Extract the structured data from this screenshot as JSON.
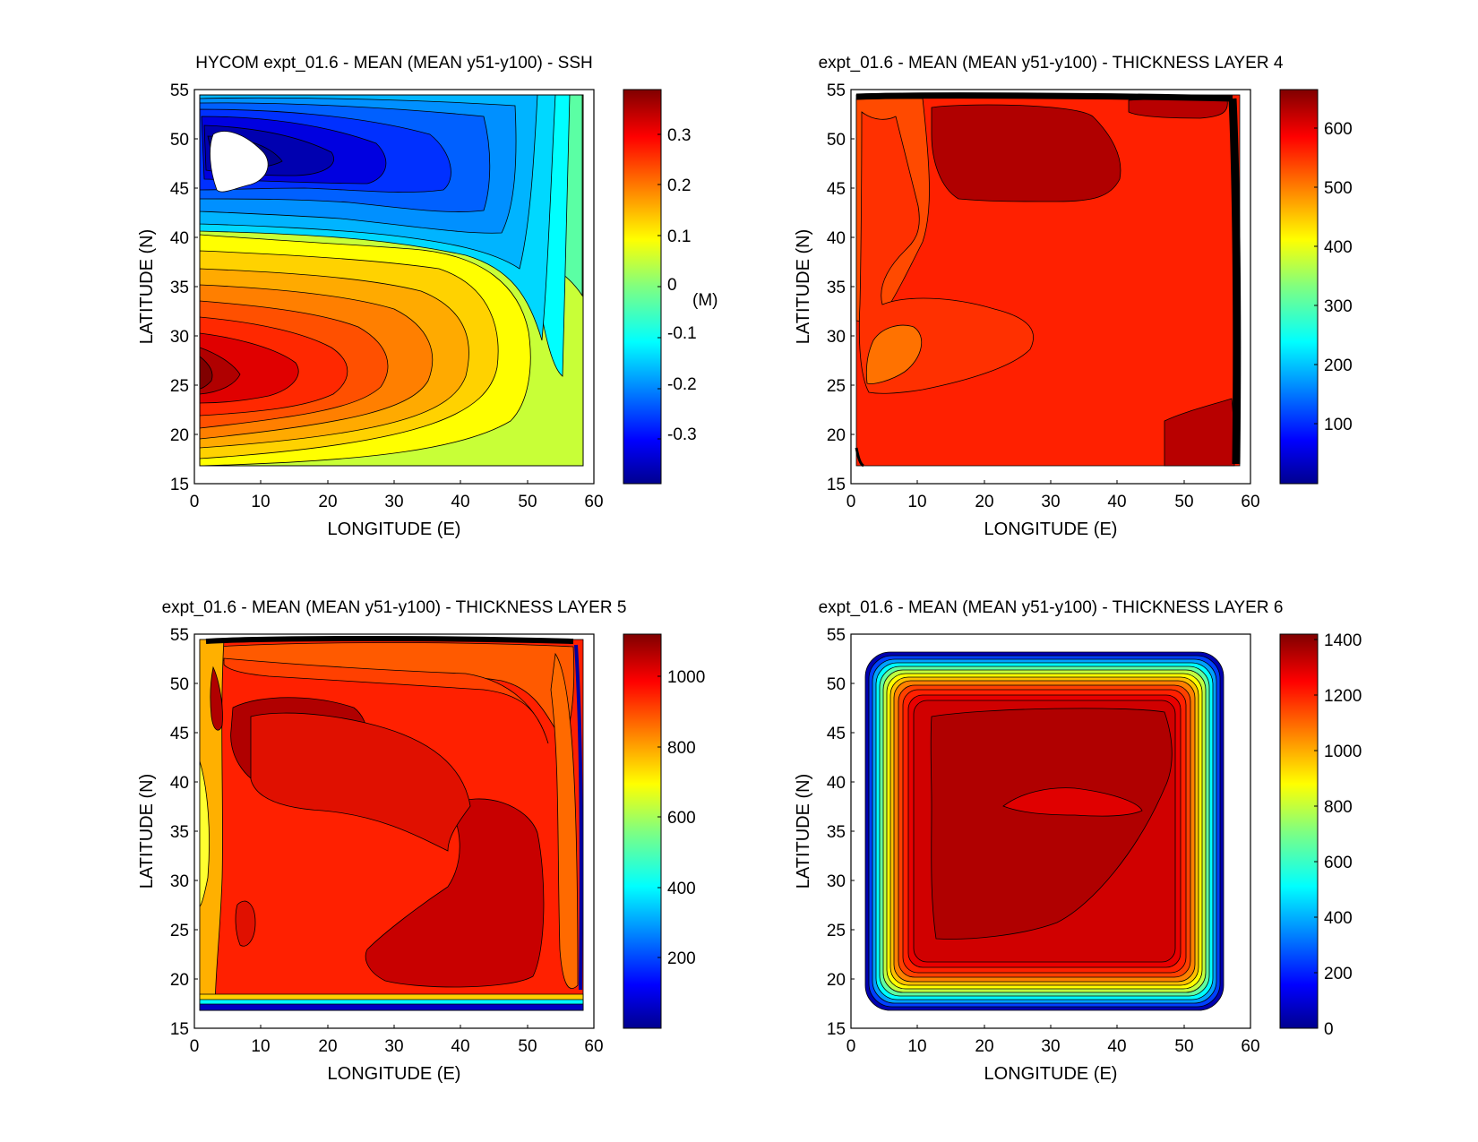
{
  "chart_data": [
    {
      "type": "heatmap",
      "subtype": "filled-contour",
      "title": "HYCOM expt_01.6 - MEAN (MEAN y51-y100) - SSH",
      "xlabel": "LONGITUDE (E)",
      "ylabel": "LATITUDE (N)",
      "xlim": [
        0,
        60
      ],
      "ylim": [
        15,
        55
      ],
      "xticks": [
        0,
        10,
        20,
        30,
        40,
        50,
        60
      ],
      "yticks": [
        15,
        20,
        25,
        30,
        35,
        40,
        45,
        50,
        55
      ],
      "colorbar": {
        "range": [
          -0.39,
          0.39
        ],
        "ticks": [
          -0.3,
          -0.2,
          -0.1,
          0,
          0.1,
          0.2,
          0.3
        ],
        "units_label": "(M)"
      },
      "features": "subpolar low near 45N in the west (min about -0.39), subtropical high near 25N in the west (max about 0.37), masked land patch near 3-10E, 44-50N"
    },
    {
      "type": "heatmap",
      "subtype": "filled-contour",
      "title": "expt_01.6 - MEAN (MEAN y51-y100) - THICKNESS LAYER 4",
      "xlabel": "LONGITUDE (E)",
      "ylabel": "LATITUDE (N)",
      "xlim": [
        0,
        60
      ],
      "ylim": [
        15,
        55
      ],
      "xticks": [
        0,
        10,
        20,
        30,
        40,
        50,
        60
      ],
      "yticks": [
        15,
        20,
        25,
        30,
        35,
        40,
        45,
        50,
        55
      ],
      "colorbar": {
        "range": [
          0,
          670
        ],
        "ticks": [
          100,
          200,
          300,
          400,
          500,
          600
        ]
      },
      "features": "mostly 550-650, thicker (dark red) near 20-40E 45-53N, thinner (orange) near 3-12E 25-32N"
    },
    {
      "type": "heatmap",
      "subtype": "filled-contour",
      "title": "expt_01.6 - MEAN (MEAN y51-y100) - THICKNESS LAYER 5",
      "xlabel": "LONGITUDE (E)",
      "ylabel": "LATITUDE (N)",
      "xlim": [
        0,
        60
      ],
      "ylim": [
        15,
        55
      ],
      "xticks": [
        0,
        10,
        20,
        30,
        40,
        50,
        60
      ],
      "yticks": [
        15,
        20,
        25,
        30,
        35,
        40,
        45,
        50,
        55
      ],
      "colorbar": {
        "range": [
          0,
          1120
        ],
        "ticks": [
          200,
          400,
          600,
          800,
          1000
        ]
      },
      "features": "interior about 950-1100, maxima near 10-25E 40-48N and 30-50E 18-30N, thin western edge"
    },
    {
      "type": "heatmap",
      "subtype": "filled-contour",
      "title": "expt_01.6 - MEAN (MEAN y51-y100) - THICKNESS LAYER 6",
      "xlabel": "LONGITUDE (E)",
      "ylabel": "LATITUDE (N)",
      "xlim": [
        0,
        60
      ],
      "ylim": [
        15,
        55
      ],
      "xticks": [
        0,
        10,
        20,
        30,
        40,
        50,
        60
      ],
      "yticks": [
        15,
        20,
        25,
        30,
        35,
        40,
        45,
        50,
        55
      ],
      "colorbar": {
        "range": [
          0,
          1420
        ],
        "ticks": [
          0,
          200,
          400,
          600,
          800,
          1000,
          1200,
          1400
        ]
      },
      "features": "interior about 1350-1420, decreasing to 0 toward all boundaries, slightly lower pocket near 25-45E 38-42N"
    }
  ]
}
